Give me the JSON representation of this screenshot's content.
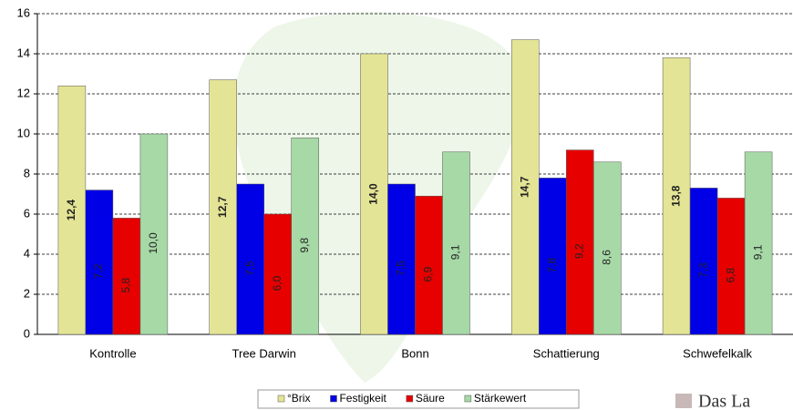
{
  "chart_data": {
    "type": "bar",
    "categories": [
      "Kontrolle",
      "Tree Darwin",
      "Bonn",
      "Schattierung",
      "Schwefelkalk"
    ],
    "series": [
      {
        "name": "°Brix",
        "color": "#e4e496",
        "values": [
          12.4,
          12.7,
          14.0,
          14.7,
          13.8
        ],
        "value_labels": [
          "12,4",
          "12,7",
          "14,0",
          "14,7",
          "13,8"
        ]
      },
      {
        "name": "Festigkeit",
        "color": "#0000e6",
        "values": [
          7.2,
          7.5,
          7.5,
          7.8,
          7.3
        ],
        "value_labels": [
          "7,2",
          "7,5",
          "7,5",
          "7,8",
          "7,3"
        ]
      },
      {
        "name": "Säure",
        "color": "#e60000",
        "values": [
          5.8,
          6.0,
          6.9,
          9.2,
          6.8
        ],
        "value_labels": [
          "5,8",
          "6,0",
          "6,9",
          "9,2",
          "6,8"
        ]
      },
      {
        "name": "Stärkewert",
        "color": "#a6d9a6",
        "values": [
          10.0,
          9.8,
          9.1,
          8.6,
          9.1
        ],
        "value_labels": [
          "10,0",
          "9,8",
          "9,1",
          "8,6",
          "9,1"
        ]
      }
    ],
    "ylim": [
      0,
      16
    ],
    "yticks": [
      0,
      2,
      4,
      6,
      8,
      10,
      12,
      14,
      16
    ],
    "grid": true,
    "logo_text": "Das La"
  }
}
